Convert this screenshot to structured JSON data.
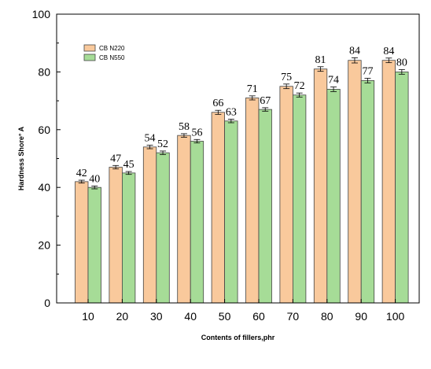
{
  "chart_data": {
    "type": "bar",
    "xlabel": "Contents of fillers,phr",
    "ylabel": "Hardness Shore° A",
    "ylim": [
      0,
      100
    ],
    "yticks": [
      0,
      20,
      40,
      60,
      80,
      100
    ],
    "categories": [
      "10",
      "20",
      "30",
      "40",
      "50",
      "60",
      "70",
      "80",
      "90",
      "100"
    ],
    "series": [
      {
        "name": "CB N220",
        "values": [
          42,
          47,
          54,
          58,
          66,
          71,
          75,
          81,
          84,
          84
        ],
        "errors": [
          0.5,
          0.6,
          0.6,
          0.6,
          0.7,
          0.7,
          0.8,
          0.8,
          0.9,
          0.8
        ],
        "color": "#f9c99c"
      },
      {
        "name": "CB N550",
        "values": [
          40,
          45,
          52,
          56,
          63,
          67,
          72,
          74,
          77,
          80
        ],
        "errors": [
          0.5,
          0.5,
          0.6,
          0.6,
          0.6,
          0.6,
          0.7,
          0.8,
          0.8,
          0.8
        ],
        "color": "#a6dc97"
      }
    ],
    "legend_position": "top-left",
    "grid": false,
    "error_bars": true
  }
}
